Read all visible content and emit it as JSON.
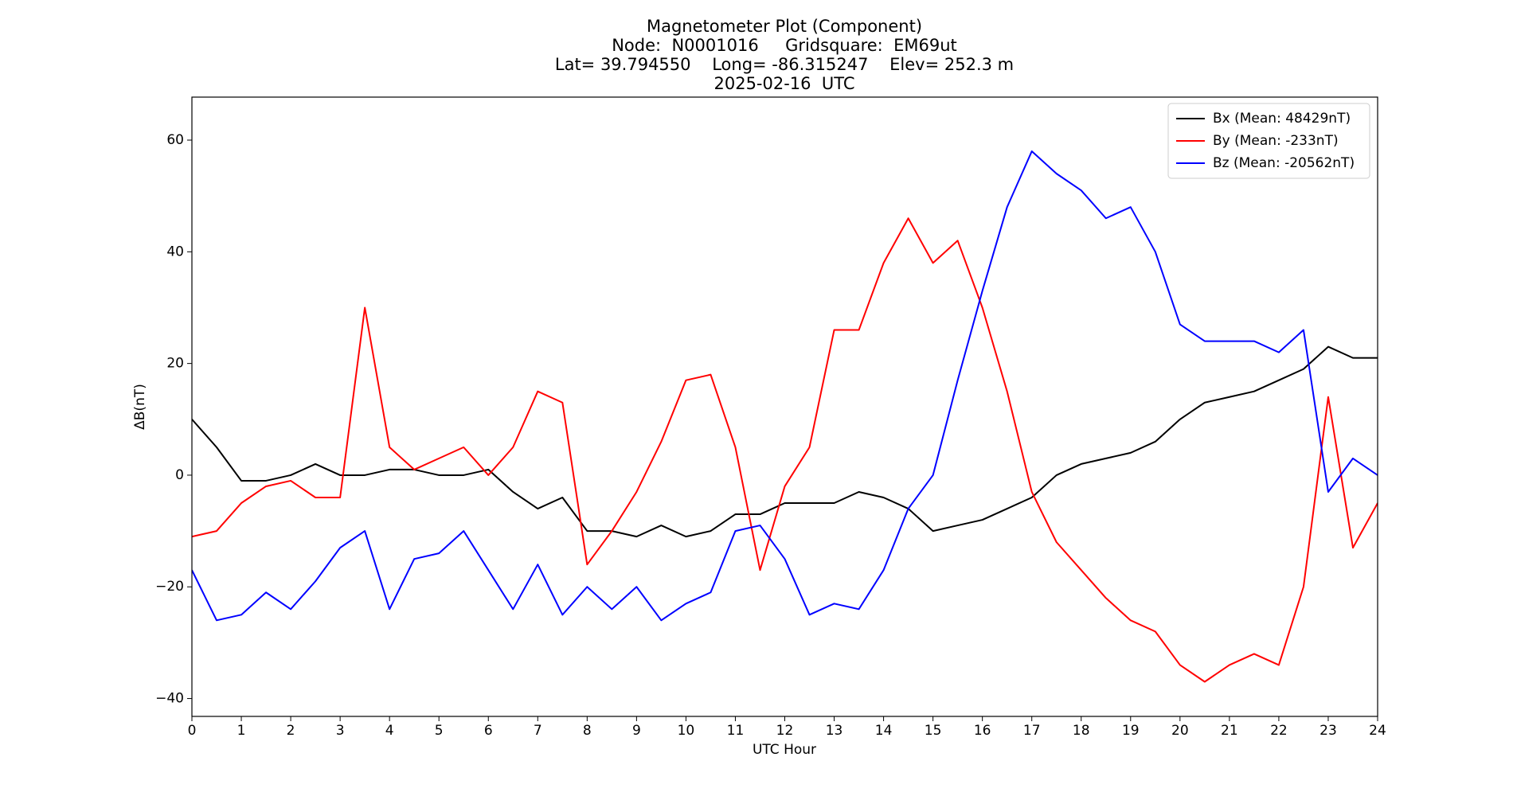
{
  "chart_data": {
    "type": "line",
    "title": [
      "Magnetometer Plot (Component)",
      "Node:  N0001016     Gridsquare:  EM69ut",
      "Lat= 39.794550    Long= -86.315247    Elev= 252.3 m",
      "2025-02-16  UTC"
    ],
    "x_label": "UTC Hour",
    "y_label": "ΔB(nT)",
    "x": [
      0,
      0.5,
      1,
      1.5,
      2,
      2.5,
      3,
      3.5,
      4,
      4.5,
      5,
      5.5,
      6,
      6.5,
      7,
      7.5,
      8,
      8.5,
      9,
      9.5,
      10,
      10.5,
      11,
      11.5,
      12,
      12.5,
      13,
      13.5,
      14,
      14.5,
      15,
      15.5,
      16,
      16.5,
      17,
      17.5,
      18,
      18.5,
      19,
      19.5,
      20,
      20.5,
      21,
      21.5,
      22,
      22.5,
      23,
      23.5,
      24
    ],
    "series": [
      {
        "name": "Bx (Mean: 48429nT)",
        "color": "#000000",
        "values": [
          10,
          5,
          -1,
          -1,
          0,
          2,
          0,
          0,
          1,
          1,
          0,
          0,
          1,
          -3,
          -6,
          -4,
          -10,
          -10,
          -11,
          -9,
          -11,
          -10,
          -7,
          -7,
          -5,
          -5,
          -5,
          -3,
          -4,
          -6,
          -10,
          -9,
          -8,
          -6,
          -4,
          0,
          2,
          3,
          4,
          6,
          10,
          13,
          14,
          15,
          17,
          19,
          23,
          21,
          21
        ]
      },
      {
        "name": "By (Mean: -233nT)",
        "color": "#ff0000",
        "values": [
          -11,
          -10,
          -5,
          -2,
          -1,
          -4,
          -4,
          30,
          5,
          1,
          3,
          5,
          0,
          5,
          15,
          13,
          -16,
          -10,
          -3,
          6,
          17,
          18,
          5,
          -17,
          -2,
          5,
          26,
          26,
          38,
          46,
          38,
          42,
          30,
          15,
          -3,
          -12,
          -17,
          -22,
          -26,
          -28,
          -34,
          -37,
          -34,
          -32,
          -34,
          -20,
          14,
          -13,
          -5
        ]
      },
      {
        "name": "Bz (Mean: -20562nT)",
        "color": "#0000ff",
        "values": [
          -17,
          -26,
          -25,
          -21,
          -24,
          -19,
          -13,
          -10,
          -24,
          -15,
          -14,
          -10,
          -17,
          -24,
          -16,
          -25,
          -20,
          -24,
          -20,
          -26,
          -23,
          -21,
          -10,
          -9,
          -15,
          -25,
          -23,
          -24,
          -17,
          -6,
          0,
          17,
          33,
          48,
          58,
          54,
          51,
          46,
          48,
          40,
          27,
          24,
          24,
          24,
          22,
          26,
          -3,
          3,
          0
        ]
      }
    ],
    "xlim": [
      0,
      24
    ],
    "ylim": [
      -43.2,
      67.7
    ],
    "xticks": [
      0,
      1,
      2,
      3,
      4,
      5,
      6,
      7,
      8,
      9,
      10,
      11,
      12,
      13,
      14,
      15,
      16,
      17,
      18,
      19,
      20,
      21,
      22,
      23,
      24
    ],
    "yticks": [
      {
        "value": -40,
        "label": "−40"
      },
      {
        "value": -20,
        "label": "−20"
      },
      0,
      20,
      40,
      60
    ],
    "legend": "upper right"
  }
}
